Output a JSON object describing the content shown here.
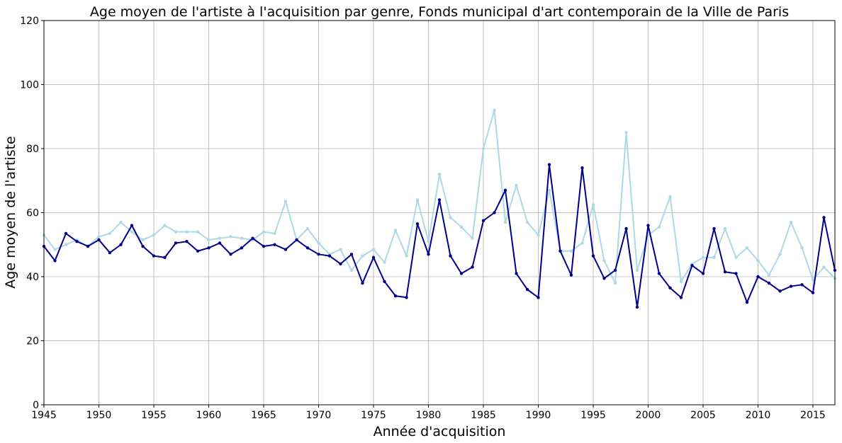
{
  "chart_data": {
    "type": "line",
    "title": "Age moyen de l'artiste à l'acquisition par genre, Fonds municipal d'art contemporain de la Ville de Paris",
    "xlabel": "Année d'acquisition",
    "ylabel": "Age moyen de l'artiste",
    "xlim": [
      1945,
      2017
    ],
    "ylim": [
      0,
      120
    ],
    "xticks": [
      "1945",
      "1950",
      "1955",
      "1960",
      "1965",
      "1970",
      "1975",
      "1980",
      "1985",
      "1990",
      "1995",
      "2000",
      "2005",
      "2010",
      "2015"
    ],
    "yticks": [
      "0",
      "20",
      "40",
      "60",
      "80",
      "100",
      "120"
    ],
    "grid": true,
    "x": [
      1945,
      1946,
      1947,
      1948,
      1949,
      1950,
      1951,
      1952,
      1953,
      1954,
      1955,
      1956,
      1957,
      1958,
      1959,
      1960,
      1961,
      1962,
      1963,
      1964,
      1965,
      1966,
      1967,
      1968,
      1969,
      1970,
      1971,
      1972,
      1973,
      1974,
      1975,
      1976,
      1977,
      1978,
      1979,
      1980,
      1981,
      1982,
      1983,
      1984,
      1985,
      1986,
      1987,
      1988,
      1989,
      1990,
      1991,
      1992,
      1993,
      1994,
      1995,
      1996,
      1997,
      1998,
      1999,
      2000,
      2001,
      2002,
      2003,
      2004,
      2005,
      2006,
      2007,
      2008,
      2009,
      2010,
      2011,
      2012,
      2013,
      2014,
      2015,
      2016,
      2017
    ],
    "series": [
      {
        "color": "#add8e6",
        "values": [
          53,
          48.5,
          50,
          51.5,
          49.5,
          52.5,
          53.5,
          57,
          54,
          51.5,
          53,
          56,
          54,
          54,
          54,
          51.5,
          52,
          52.5,
          52,
          51.5,
          54,
          53.5,
          63.5,
          51.5,
          55,
          50.5,
          47,
          48.5,
          42,
          46.5,
          48.5,
          44.5,
          54.5,
          46.5,
          64,
          51,
          72,
          58.5,
          55.5,
          52,
          80,
          92,
          57,
          68.5,
          57,
          53,
          67,
          48,
          48,
          50.5,
          62.5,
          45,
          38,
          85,
          42,
          53,
          55.5,
          65,
          38.5,
          44,
          46,
          46,
          55,
          46,
          49,
          45,
          40.5,
          47,
          57,
          49,
          39,
          43,
          39.5
        ]
      },
      {
        "color": "#00008b",
        "values": [
          49.5,
          45,
          53.5,
          51,
          49.5,
          51.5,
          47.5,
          50,
          56,
          49.5,
          46.5,
          46,
          50.5,
          51,
          48,
          49,
          50.5,
          47,
          49,
          52,
          49.5,
          50,
          48.5,
          51.5,
          49,
          47,
          46.5,
          44,
          47,
          38,
          46,
          38.5,
          34,
          33.5,
          56.5,
          47,
          64,
          46.5,
          41,
          43,
          57.5,
          60,
          67,
          41,
          36,
          33.5,
          75,
          48,
          40.5,
          74,
          46.5,
          39.5,
          42,
          55,
          30.5,
          56,
          41,
          36.5,
          33.5,
          43.5,
          41,
          55,
          41.5,
          41,
          32,
          40,
          38,
          35.5,
          37,
          37.5,
          35,
          58.5,
          42
        ]
      }
    ]
  }
}
